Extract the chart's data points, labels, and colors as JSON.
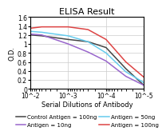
{
  "title": "ELISA Result",
  "xlabel": "Serial Dilutions of Antibody",
  "ylabel": "O.D.",
  "xscale": "log",
  "xlim_left": 0.01,
  "xlim_right": 1e-05,
  "ylim": [
    0,
    1.6
  ],
  "yticks": [
    0,
    0.2,
    0.4,
    0.6,
    0.8,
    1.0,
    1.2,
    1.4,
    1.6
  ],
  "ytick_labels": [
    "0",
    "0.2",
    "0.4",
    "0.6",
    "0.8",
    "1",
    "1.2",
    "1.4",
    "1.6"
  ],
  "xticks": [
    0.01,
    0.001,
    0.0001,
    1e-05
  ],
  "xticklabels": [
    "10^-2",
    "10^-3",
    "10^-4",
    "10^-5"
  ],
  "series": [
    {
      "label": "Control Antigen = 100ng",
      "color": "#444444",
      "x": [
        0.01,
        0.005,
        0.001,
        0.0003,
        0.0001,
        3e-05,
        1e-05
      ],
      "y": [
        1.2,
        1.18,
        1.1,
        1.05,
        0.92,
        0.45,
        0.08
      ]
    },
    {
      "label": "Antigen = 10ng",
      "color": "#9966cc",
      "x": [
        0.01,
        0.005,
        0.001,
        0.0003,
        0.0001,
        3e-05,
        1e-05
      ],
      "y": [
        1.22,
        1.2,
        1.0,
        0.82,
        0.62,
        0.28,
        0.08
      ]
    },
    {
      "label": "Antigen = 50ng",
      "color": "#66ccee",
      "x": [
        0.01,
        0.005,
        0.001,
        0.0003,
        0.0001,
        3e-05,
        1e-05
      ],
      "y": [
        1.28,
        1.26,
        1.18,
        1.05,
        0.8,
        0.38,
        0.14
      ]
    },
    {
      "label": "Antigen = 100ng",
      "color": "#dd4444",
      "x": [
        0.01,
        0.005,
        0.001,
        0.0003,
        0.0001,
        3e-05,
        1e-05
      ],
      "y": [
        1.35,
        1.38,
        1.38,
        1.32,
        1.1,
        0.6,
        0.26
      ]
    }
  ],
  "legend_fontsize": 5.0,
  "title_fontsize": 8,
  "axis_label_fontsize": 6,
  "tick_fontsize": 5.5,
  "background_color": "#ffffff",
  "grid_color": "#cccccc",
  "linewidth": 1.1
}
